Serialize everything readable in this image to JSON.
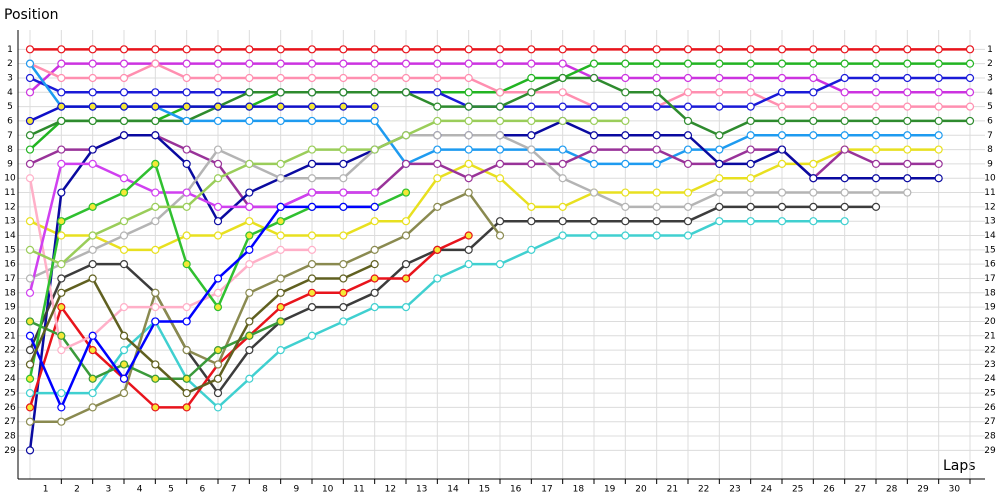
{
  "chart_data": {
    "type": "line",
    "x_label": "Laps",
    "y_label": "Position",
    "x": [
      0,
      1,
      2,
      3,
      4,
      5,
      6,
      7,
      8,
      9,
      10,
      11,
      12,
      13,
      14,
      15,
      16,
      17,
      18,
      19,
      20,
      21,
      22,
      23,
      24,
      25,
      26,
      27,
      28,
      29,
      30
    ],
    "xlim": [
      0,
      30
    ],
    "xticks": [
      1,
      2,
      3,
      4,
      5,
      6,
      7,
      8,
      9,
      10,
      11,
      12,
      13,
      14,
      15,
      16,
      17,
      18,
      19,
      20,
      21,
      22,
      23,
      24,
      25,
      26,
      27,
      28,
      29,
      30
    ],
    "ylim": [
      31,
      0
    ],
    "yticks": [
      1,
      2,
      3,
      4,
      5,
      6,
      7,
      8,
      9,
      10,
      11,
      12,
      13,
      14,
      15,
      16,
      17,
      18,
      19,
      20,
      21,
      22,
      23,
      24,
      25,
      26,
      27,
      28,
      29
    ],
    "grid": true,
    "series": [
      {
        "color": "#e8141c",
        "marker_fill": "#ffffff",
        "values": [
          1,
          1,
          1,
          1,
          1,
          1,
          1,
          1,
          1,
          1,
          1,
          1,
          1,
          1,
          1,
          1,
          1,
          1,
          1,
          1,
          1,
          1,
          1,
          1,
          1,
          1,
          1,
          1,
          1,
          1,
          1
        ]
      },
      {
        "color": "#cc33e0",
        "marker_fill": "#ffffff",
        "values": [
          4,
          2,
          2,
          2,
          2,
          2,
          2,
          2,
          2,
          2,
          2,
          2,
          2,
          2,
          2,
          2,
          2,
          2,
          3,
          3,
          3,
          3,
          3,
          3,
          3,
          3,
          4,
          4,
          4,
          4,
          4
        ]
      },
      {
        "color": "#22b422",
        "marker_fill": "#ffffff",
        "values": [
          8,
          6,
          6,
          6,
          6,
          5,
          5,
          5,
          4,
          4,
          4,
          4,
          4,
          4,
          4,
          4,
          3,
          3,
          2,
          2,
          2,
          2,
          2,
          2,
          2,
          2,
          2,
          2,
          2,
          2,
          2
        ]
      },
      {
        "color": "#ff8fb0",
        "marker_fill": "#ffffff",
        "values": [
          2,
          3,
          3,
          3,
          2,
          3,
          3,
          3,
          3,
          3,
          3,
          3,
          3,
          3,
          3,
          4,
          4,
          4,
          5,
          5,
          5,
          4,
          4,
          4,
          5,
          5,
          5,
          5,
          5,
          5,
          5
        ]
      },
      {
        "color": "#1a1ad8",
        "marker_fill": "#ffffff",
        "values": [
          3,
          4,
          4,
          4,
          4,
          4,
          4,
          4,
          4,
          4,
          4,
          4,
          4,
          4,
          5,
          5,
          5,
          5,
          5,
          5,
          5,
          5,
          5,
          5,
          4,
          4,
          3,
          3,
          3,
          3,
          3
        ]
      },
      {
        "color": "#2e8b2e",
        "marker_fill": "#ffffff",
        "values": [
          7,
          6,
          6,
          6,
          6,
          6,
          5,
          4,
          4,
          4,
          4,
          4,
          4,
          5,
          5,
          5,
          4,
          3,
          3,
          4,
          4,
          6,
          7,
          6,
          6,
          6,
          6,
          6,
          6,
          6,
          6
        ]
      },
      {
        "color": "#1e9bf0",
        "marker_fill": "#ffffff",
        "values": [
          2,
          5,
          5,
          5,
          5,
          6,
          6,
          6,
          6,
          6,
          6,
          6,
          9,
          8,
          8,
          8,
          8,
          8,
          9,
          9,
          9,
          8,
          8,
          7,
          7,
          7,
          7,
          7,
          7,
          7,
          null
        ]
      },
      {
        "color": "#1010c8",
        "marker_fill": "#f5e836",
        "values": [
          6,
          5,
          5,
          5,
          5,
          5,
          5,
          5,
          5,
          5,
          5,
          5,
          null,
          null,
          null,
          null,
          null,
          null,
          null,
          null,
          null,
          null,
          null,
          null,
          null,
          null,
          null,
          null,
          null,
          null,
          null
        ]
      },
      {
        "color": "#e8e020",
        "marker_fill": "#ffffff",
        "values": [
          13,
          14,
          14,
          15,
          15,
          14,
          14,
          13,
          14,
          14,
          14,
          13,
          13,
          10,
          9,
          10,
          12,
          12,
          11,
          11,
          11,
          11,
          10,
          10,
          9,
          9,
          8,
          8,
          8,
          8,
          null
        ]
      },
      {
        "color": "#993399",
        "marker_fill": "#ffffff",
        "values": [
          9,
          8,
          8,
          7,
          7,
          8,
          9,
          12,
          12,
          11,
          11,
          11,
          9,
          9,
          10,
          9,
          9,
          9,
          8,
          8,
          8,
          9,
          9,
          8,
          8,
          10,
          8,
          9,
          9,
          9,
          null
        ]
      },
      {
        "color": "#0a0aa0",
        "marker_fill": "#ffffff",
        "values": [
          29,
          11,
          8,
          7,
          7,
          9,
          13,
          11,
          10,
          9,
          9,
          8,
          7,
          7,
          7,
          7,
          7,
          6,
          7,
          7,
          7,
          7,
          9,
          9,
          8,
          10,
          10,
          10,
          10,
          10,
          null
        ]
      },
      {
        "color": "#b4b4b4",
        "marker_fill": "#ffffff",
        "values": [
          17,
          16,
          15,
          14,
          13,
          11,
          8,
          9,
          10,
          10,
          10,
          8,
          7,
          7,
          7,
          7,
          8,
          10,
          11,
          12,
          12,
          12,
          11,
          11,
          11,
          11,
          11,
          11,
          11,
          null,
          null
        ]
      },
      {
        "color": "#3c3c3c",
        "marker_fill": "#ffffff",
        "values": [
          22,
          17,
          16,
          16,
          18,
          22,
          25,
          22,
          20,
          19,
          19,
          18,
          16,
          15,
          15,
          13,
          13,
          13,
          13,
          13,
          13,
          13,
          12,
          12,
          12,
          12,
          12,
          12,
          null,
          null,
          null
        ]
      },
      {
        "color": "#40d0d0",
        "marker_fill": "#ffffff",
        "values": [
          25,
          25,
          25,
          22,
          20,
          24,
          26,
          24,
          22,
          21,
          20,
          19,
          19,
          17,
          16,
          16,
          15,
          14,
          14,
          14,
          14,
          14,
          13,
          13,
          13,
          13,
          13,
          null,
          null,
          null,
          null
        ]
      },
      {
        "color": "#e8141c",
        "marker_fill": "#f5e836",
        "values": [
          26,
          19,
          22,
          24,
          26,
          26,
          23,
          21,
          19,
          18,
          18,
          17,
          17,
          15,
          14,
          null,
          null,
          null,
          null,
          null,
          null,
          null,
          null,
          null,
          null,
          null,
          null,
          null,
          null,
          null,
          null
        ]
      },
      {
        "color": "#8a8a50",
        "marker_fill": "#ffffff",
        "values": [
          27,
          27,
          26,
          25,
          18,
          22,
          23,
          18,
          17,
          16,
          16,
          15,
          14,
          12,
          11,
          14,
          null,
          null,
          null,
          null,
          null,
          null,
          null,
          null,
          null,
          null,
          null,
          null,
          null,
          null,
          null
        ]
      },
      {
        "color": "#3a9a3a",
        "marker_fill": "#f5e836",
        "values": [
          20,
          21,
          24,
          23,
          24,
          24,
          22,
          21,
          20,
          null,
          null,
          null,
          null,
          null,
          null,
          null,
          null,
          null,
          null,
          null,
          null,
          null,
          null,
          null,
          null,
          null,
          null,
          null,
          null,
          null,
          null
        ]
      },
      {
        "color": "#ffb0c8",
        "marker_fill": "#ffffff",
        "values": [
          10,
          22,
          21,
          19,
          19,
          19,
          18,
          16,
          15,
          15,
          null,
          null,
          null,
          null,
          null,
          null,
          null,
          null,
          null,
          null,
          null,
          null,
          null,
          null,
          null,
          null,
          null,
          null,
          null,
          null,
          null
        ]
      },
      {
        "color": "#d040f0",
        "marker_fill": "#ffffff",
        "values": [
          18,
          9,
          9,
          10,
          11,
          11,
          12,
          12,
          12,
          11,
          11,
          11,
          null,
          null,
          null,
          null,
          null,
          null,
          null,
          null,
          null,
          null,
          null,
          null,
          null,
          null,
          null,
          null,
          null,
          null,
          null
        ]
      },
      {
        "color": "#30c030",
        "marker_fill": "#f5e836",
        "values": [
          24,
          13,
          12,
          11,
          9,
          16,
          19,
          14,
          13,
          12,
          12,
          12,
          11,
          null,
          null,
          null,
          null,
          null,
          null,
          null,
          null,
          null,
          null,
          null,
          null,
          null,
          null,
          null,
          null,
          null,
          null
        ]
      },
      {
        "color": "#9acd5a",
        "marker_fill": "#ffffff",
        "values": [
          15,
          16,
          14,
          13,
          12,
          12,
          10,
          9,
          9,
          8,
          8,
          8,
          7,
          6,
          6,
          6,
          6,
          6,
          6,
          6,
          null,
          null,
          null,
          null,
          null,
          null,
          null,
          null,
          null,
          null,
          null
        ]
      },
      {
        "color": "#0000ff",
        "marker_fill": "#ffffff",
        "values": [
          21,
          26,
          21,
          24,
          20,
          20,
          17,
          15,
          12,
          12,
          12,
          12,
          null,
          null,
          null,
          null,
          null,
          null,
          null,
          null,
          null,
          null,
          null,
          null,
          null,
          null,
          null,
          null,
          null,
          null,
          null
        ]
      },
      {
        "color": "#606020",
        "marker_fill": "#ffffff",
        "values": [
          23,
          18,
          17,
          21,
          23,
          25,
          24,
          20,
          18,
          17,
          17,
          16,
          null,
          null,
          null,
          null,
          null,
          null,
          null,
          null,
          null,
          null,
          null,
          null,
          null,
          null,
          null,
          null,
          null,
          null,
          null
        ]
      }
    ]
  }
}
